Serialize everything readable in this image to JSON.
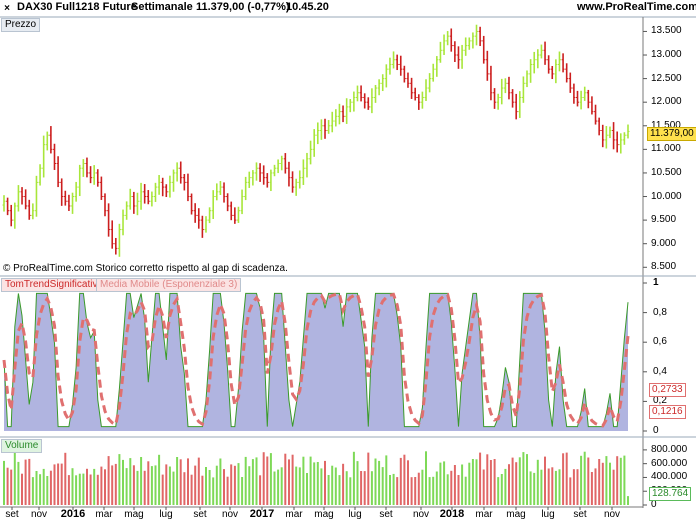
{
  "header": {
    "close_glyph": "×",
    "instrument": "DAX30 Full1218 Future",
    "period": "Settimanale",
    "quote": "11.379,00 (-0,77%)",
    "time": "10.45.20",
    "brand": "www.ProRealTime.com"
  },
  "price_panel": {
    "label": "Prezzo",
    "note": "© ProRealTime.com Storico corretto rispetto al gap di scadenza.",
    "ticks": [
      "13.500",
      "13.000",
      "12.500",
      "12.000",
      "11.500",
      "11.000",
      "10.500",
      "10.000",
      "9.500",
      "9.000",
      "8.500"
    ],
    "last_price": "11.379,00",
    "colors": {
      "up": "#a8e63a",
      "down": "#cc1e1e",
      "tag_bg": "#ffe14d"
    }
  },
  "indicator_panel": {
    "label_1": "TomTrendSignificative",
    "label_2": "Media Mobile (Esponenziale 3)",
    "ticks": [
      "1",
      "0,8",
      "0,6",
      "0,4",
      "0,2",
      "0"
    ],
    "value_1": "0,2733",
    "value_2": "0,1216",
    "colors": {
      "fill": "#b0b4e0",
      "line": "#3a9a2a",
      "ema": "#e07070"
    }
  },
  "volume_panel": {
    "label": "Volume",
    "ticks": [
      "800.000",
      "600.000",
      "400.000",
      "200.000",
      "0"
    ],
    "last_value": "128.764",
    "colors": {
      "up": "#7ed957",
      "down": "#e06666"
    }
  },
  "x_axis": [
    {
      "label": "set",
      "year": false
    },
    {
      "label": "nov",
      "year": false
    },
    {
      "label": "2016",
      "year": true
    },
    {
      "label": "mar",
      "year": false
    },
    {
      "label": "mag",
      "year": false
    },
    {
      "label": "lug",
      "year": false
    },
    {
      "label": "set",
      "year": false
    },
    {
      "label": "nov",
      "year": false
    },
    {
      "label": "2017",
      "year": true
    },
    {
      "label": "mar",
      "year": false
    },
    {
      "label": "mag",
      "year": false
    },
    {
      "label": "lug",
      "year": false
    },
    {
      "label": "set",
      "year": false
    },
    {
      "label": "nov",
      "year": false
    },
    {
      "label": "2018",
      "year": true
    },
    {
      "label": "mar",
      "year": false
    },
    {
      "label": "mag",
      "year": false
    },
    {
      "label": "lug",
      "year": false
    },
    {
      "label": "set",
      "year": false
    },
    {
      "label": "nov",
      "year": false
    }
  ],
  "chart_data": {
    "type": "bar",
    "price_ylim": [
      8400,
      13700
    ],
    "weekly_close": [
      9900,
      9700,
      9500,
      9800,
      10100,
      10000,
      9800,
      9600,
      9700,
      10300,
      10600,
      11100,
      11300,
      11000,
      10700,
      10300,
      10000,
      9900,
      9800,
      10000,
      10200,
      10600,
      10700,
      10500,
      10400,
      10500,
      10300,
      10000,
      9700,
      9300,
      9000,
      8900,
      9300,
      9600,
      9800,
      10000,
      9800,
      9900,
      10100,
      10000,
      9900,
      10000,
      10200,
      10300,
      10200,
      10100,
      10300,
      10500,
      10600,
      10400,
      10300,
      10000,
      9700,
      9600,
      9500,
      9300,
      9500,
      9700,
      10000,
      10100,
      10200,
      10000,
      9800,
      9600,
      9500,
      9700,
      10000,
      10300,
      10400,
      10500,
      10600,
      10500,
      10400,
      10300,
      10500,
      10600,
      10700,
      10800,
      10600,
      10400,
      10200,
      10300,
      10400,
      10600,
      10800,
      11000,
      11300,
      11400,
      11500,
      11400,
      11500,
      11600,
      11700,
      11800,
      11700,
      11900,
      12000,
      12100,
      12200,
      12100,
      12000,
      11900,
      12100,
      12300,
      12400,
      12500,
      12700,
      12800,
      12900,
      12800,
      12700,
      12500,
      12400,
      12200,
      12100,
      12000,
      12100,
      12300,
      12500,
      12700,
      12900,
      13100,
      13300,
      13400,
      13200,
      13000,
      12900,
      13100,
      13200,
      13300,
      13400,
      13500,
      13300,
      12900,
      12600,
      12200,
      12000,
      12100,
      12300,
      12400,
      12200,
      12000,
      11800,
      12100,
      12400,
      12600,
      12800,
      12900,
      13000,
      13100,
      12900,
      12700,
      12600,
      12800,
      12900,
      12700,
      12500,
      12300,
      12100,
      12000,
      12100,
      12200,
      12000,
      11800,
      11600,
      11400,
      11200,
      11300,
      11400,
      11200,
      11100,
      11200,
      11300,
      11380
    ]
  }
}
